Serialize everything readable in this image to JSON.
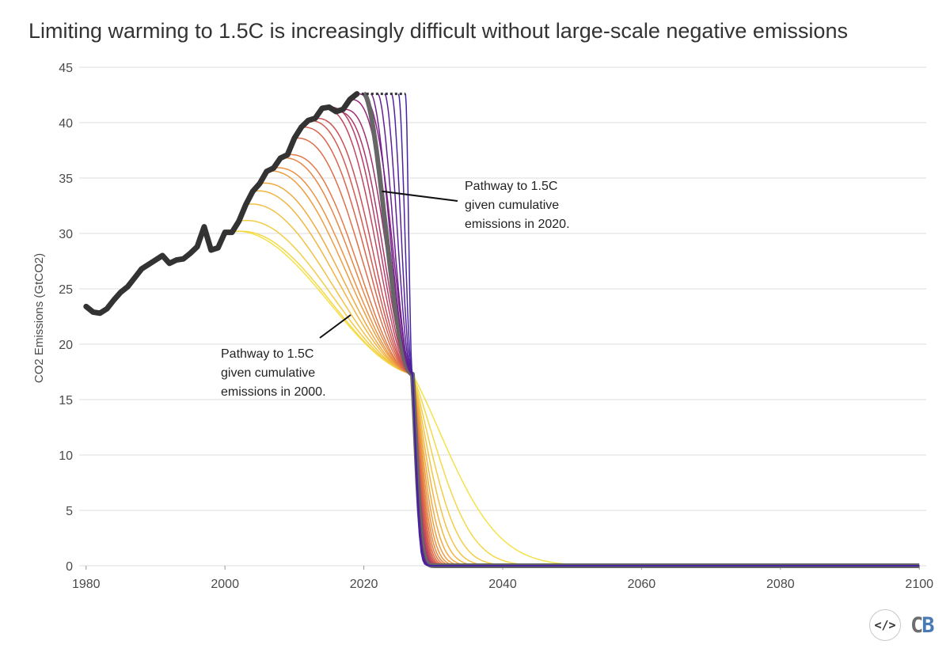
{
  "chart_data": {
    "type": "line",
    "title": "Limiting warming to 1.5C is increasingly difficult without large-scale negative emissions",
    "ylabel": "CO2 Emissions (GtCO2)",
    "xlabel": "",
    "xlim": [
      1979,
      2101
    ],
    "ylim": [
      0,
      45
    ],
    "xticks": [
      1980,
      2000,
      2020,
      2040,
      2060,
      2080,
      2100
    ],
    "yticks": [
      0,
      5,
      10,
      15,
      20,
      25,
      30,
      35,
      40,
      45
    ],
    "grid": "horizontal",
    "legend": "none",
    "historical": {
      "color": "#333333",
      "x": [
        1980,
        1981,
        1982,
        1983,
        1984,
        1985,
        1986,
        1987,
        1988,
        1989,
        1990,
        1991,
        1992,
        1993,
        1994,
        1995,
        1996,
        1997,
        1998,
        1999,
        2000,
        2001,
        2002,
        2003,
        2004,
        2005,
        2006,
        2007,
        2008,
        2009,
        2010,
        2011,
        2012,
        2013,
        2014,
        2015,
        2016,
        2017,
        2018,
        2019
      ],
      "y": [
        23.4,
        22.9,
        22.8,
        23.2,
        24.0,
        24.7,
        25.2,
        26.0,
        26.8,
        27.2,
        27.6,
        28.0,
        27.3,
        27.6,
        27.7,
        28.2,
        28.8,
        30.6,
        28.5,
        28.7,
        30.1,
        30.1,
        31.1,
        32.6,
        33.8,
        34.5,
        35.6,
        35.9,
        36.8,
        37.1,
        38.6,
        39.6,
        40.2,
        40.4,
        41.3,
        41.4,
        41.0,
        41.2,
        42.1,
        42.6
      ]
    },
    "pathways": {
      "start_years": [
        2000,
        2001,
        2002,
        2003,
        2004,
        2005,
        2006,
        2007,
        2008,
        2009,
        2010,
        2011,
        2012,
        2013,
        2014,
        2015,
        2016,
        2017,
        2018,
        2019,
        2020,
        2021,
        2022,
        2023,
        2024,
        2025,
        2026
      ],
      "colors": [
        "#f4e24a",
        "#f4d848",
        "#f3cd46",
        "#f2c244",
        "#f1b642",
        "#efaa41",
        "#ed9e41",
        "#ea9242",
        "#e68644",
        "#e27a47",
        "#dd6f4a",
        "#d8644e",
        "#d15a53",
        "#c95058",
        "#c1475e",
        "#b73f65",
        "#ad376c",
        "#a23073",
        "#962a7b",
        "#8a2583",
        "#7d2289",
        "#70208f",
        "#632095",
        "#5a2199",
        "#52229c",
        "#4b239f",
        "#4424a2"
      ],
      "highlight_start": 2020,
      "highlight_color": "#666666",
      "convergence": [
        2027,
        17.3
      ],
      "dotted_plateau": [
        2019,
        2026,
        42.6
      ]
    },
    "annotations": [
      {
        "lines": [
          "Pathway to 1.5C",
          "given cumulative",
          "emissions in 2020."
        ]
      },
      {
        "lines": [
          "Pathway to 1.5C",
          "given cumulative",
          "emissions in 2000."
        ]
      }
    ]
  },
  "footer": {
    "embed_icon": "</>",
    "logo_c": "C",
    "logo_b": "B"
  }
}
